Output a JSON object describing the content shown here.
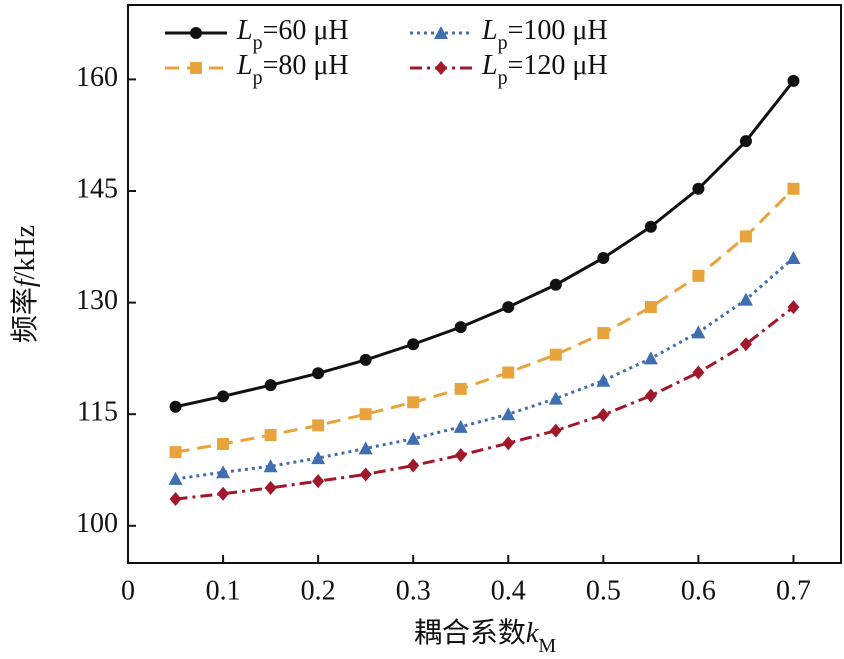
{
  "chart_data": {
    "type": "line",
    "x_label": "耦合系数kM",
    "y_label": "频率f/kHz",
    "x": [
      0.05,
      0.1,
      0.15,
      0.2,
      0.25,
      0.3,
      0.35,
      0.4,
      0.45,
      0.5,
      0.55,
      0.6,
      0.65,
      0.7
    ],
    "series": [
      {
        "name": "Lp=60 μH",
        "color": "#111111",
        "marker": "circle",
        "dash": "solid",
        "values": [
          116.0,
          117.4,
          118.9,
          120.5,
          122.3,
          124.4,
          126.7,
          129.4,
          132.4,
          136.0,
          140.2,
          145.3,
          151.7,
          159.8
        ]
      },
      {
        "name": "Lp=80 μH",
        "color": "#e8a33d",
        "marker": "square",
        "dash": "dashed",
        "values": [
          109.9,
          111.0,
          112.2,
          113.5,
          115.0,
          116.6,
          118.4,
          120.6,
          123.0,
          125.9,
          129.4,
          133.6,
          138.9,
          145.3
        ]
      },
      {
        "name": "Lp=100 μH",
        "color": "#3f6fb0",
        "marker": "triangle",
        "dash": "dotted",
        "values": [
          106.3,
          107.2,
          108.0,
          109.1,
          110.4,
          111.7,
          113.3,
          115.0,
          117.1,
          119.5,
          122.5,
          126.0,
          130.4,
          136.0
        ]
      },
      {
        "name": "Lp=120 μH",
        "color": "#a0182a",
        "marker": "diamond",
        "dash": "dashdot",
        "values": [
          103.6,
          104.3,
          105.1,
          106.0,
          106.9,
          108.1,
          109.5,
          111.1,
          112.8,
          114.9,
          117.5,
          120.6,
          124.4,
          129.4
        ]
      }
    ],
    "xlim": [
      0,
      0.75
    ],
    "xticks": [
      0,
      0.1,
      0.2,
      0.3,
      0.4,
      0.5,
      0.6,
      0.7
    ],
    "ylim": [
      95,
      170
    ],
    "yticks": [
      100,
      115,
      130,
      145,
      160
    ],
    "grid": false,
    "legend": "upper left"
  }
}
